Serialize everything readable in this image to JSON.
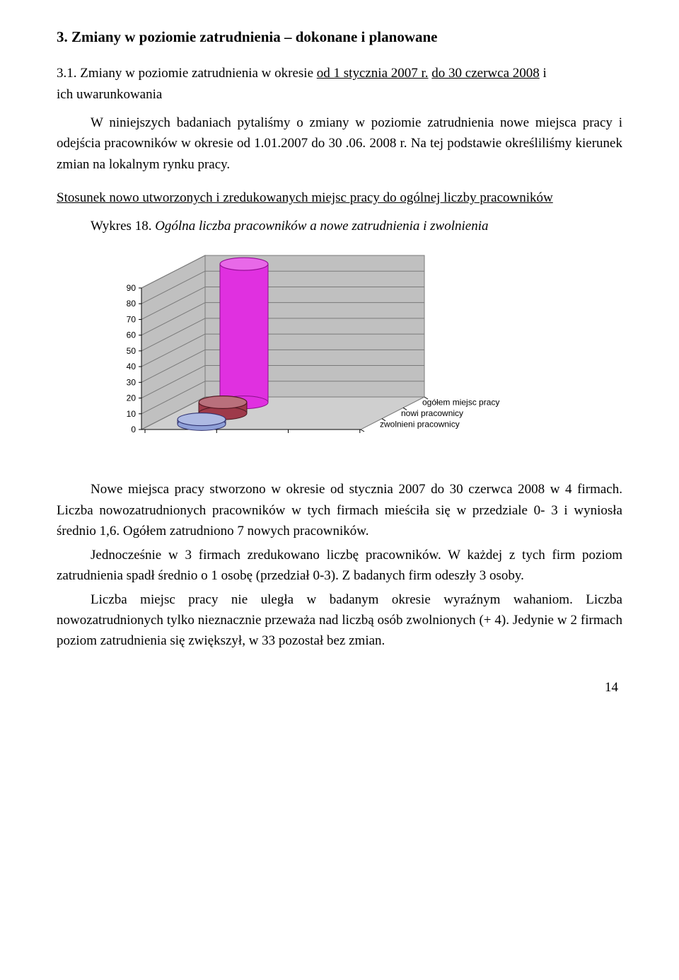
{
  "heading1": "3. Zmiany w poziomie zatrudnienia – dokonane i planowane",
  "heading2_label": "3.1. Zmiany w poziomie zatrudnienia w okresie ",
  "heading2_u1": "od 1 stycznia 2007 r.",
  "heading2_mid": " ",
  "heading2_u2": "do 30 czerwca 2008",
  "heading2_tail": " i",
  "heading2_line2": "ich uwarunkowania",
  "para1": "W niniejszych badaniach pytaliśmy o zmiany w poziomie zatrudnienia nowe miejsca pracy i odejścia pracowników w okresie od 1.01.2007 do 30 .06. 2008 r. Na tej podstawie określiliśmy kierunek zmian na lokalnym rynku pracy.",
  "section_underline": "Stosunek nowo utworzonych i zredukowanych miejsc pracy do ogólnej liczby pracowników",
  "caption_plain": "Wykres 18. ",
  "caption_italic": "Ogólna liczba pracowników a nowe zatrudnienia i zwolnienia",
  "chart": {
    "y_ticks": [
      "0",
      "10",
      "20",
      "30",
      "40",
      "50",
      "60",
      "70",
      "80",
      "90"
    ],
    "y_max": 90,
    "series": [
      {
        "label": "zwolnieni pracownicy",
        "value": 3,
        "fill": "#8fa0d8",
        "stroke": "#2e2e6a"
      },
      {
        "label": "nowi pracownicy",
        "value": 7,
        "fill": "#9e3a4a",
        "stroke": "#4a1a22"
      },
      {
        "label": "ogółem miejsc pracy",
        "value": 88,
        "fill": "#e030e0",
        "stroke": "#8a108a"
      }
    ],
    "grid_color": "#7a7a7a",
    "wall_fill": "#c0c0c0",
    "floor_fill": "#cfcfcf",
    "tick_fontsize": 12,
    "legend_fontsize": 12
  },
  "para2": "Nowe miejsca pracy stworzono w okresie od stycznia 2007 do 30 czerwca 2008 w 4 firmach. Liczba nowozatrudnionych pracowników w tych firmach mieściła się w przedziale 0- 3 i wyniosła średnio 1,6. Ogółem zatrudniono 7 nowych pracowników.",
  "para3": "Jednocześnie w 3 firmach zredukowano liczbę pracowników. W każdej z tych firm poziom zatrudnienia spadł średnio o 1 osobę (przedział 0-3). Z badanych firm odeszły 3 osoby.",
  "para4": "Liczba miejsc pracy nie uległa w badanym okresie wyraźnym wahaniom. Liczba nowozatrudnionych tylko nieznacznie przeważa nad liczbą osób zwolnionych (+ 4). Jedynie  w 2 firmach poziom zatrudnienia się zwiększył, w 33 pozostał bez zmian.",
  "page_number": "14"
}
